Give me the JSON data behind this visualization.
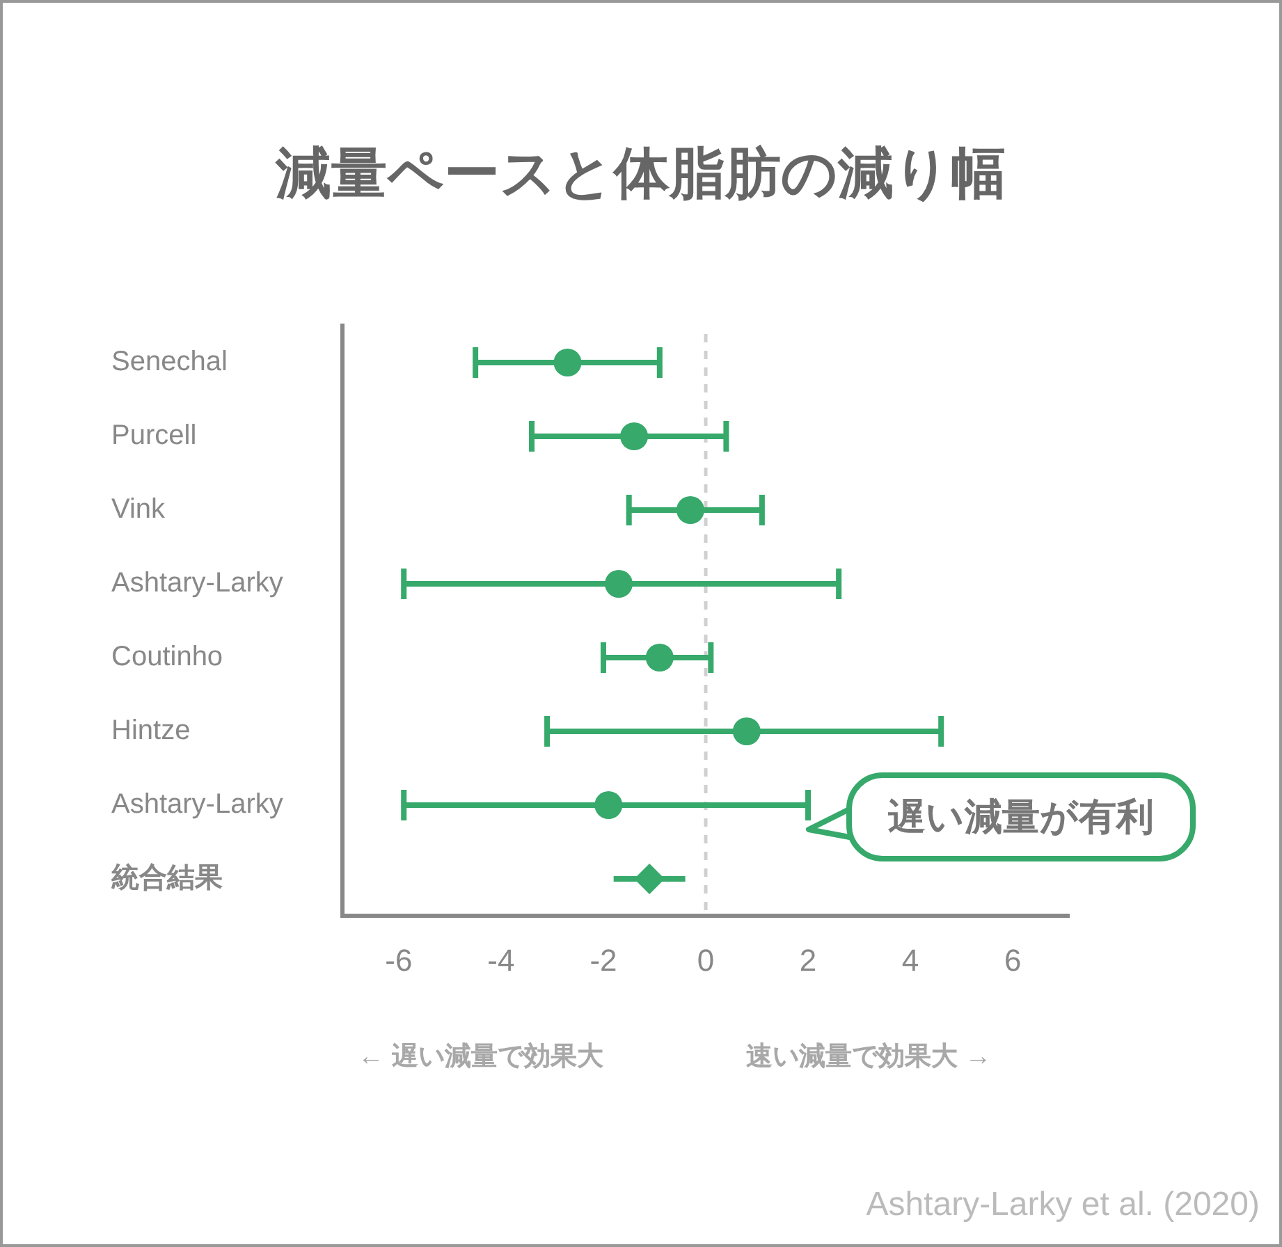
{
  "chart_data": {
    "type": "scatter",
    "title": "減量ペースと体脂肪の減り幅",
    "orientation": "horizontal",
    "categories": [
      "Senechal",
      "Purcell",
      "Vink",
      "Ashtary-Larky",
      "Coutinho",
      "Hintze",
      "Ashtary-Larky",
      "統合結果"
    ],
    "series": [
      {
        "color": "#36a96b",
        "marker": "circle",
        "values": [
          -2.7,
          -1.4,
          -0.3,
          -1.7,
          -0.9,
          0.8,
          -1.9,
          null
        ],
        "errors": [
          [
            -4.5,
            -0.9
          ],
          [
            -3.4,
            0.4
          ],
          [
            -1.5,
            1.1
          ],
          [
            -5.9,
            2.6
          ],
          [
            -2.0,
            0.1
          ],
          [
            -3.1,
            4.6
          ],
          [
            -5.9,
            2.0
          ],
          null
        ]
      },
      {
        "color": "#36a96b",
        "marker": "diamond",
        "values": [
          null,
          null,
          null,
          null,
          null,
          null,
          null,
          -1.1
        ],
        "errors": [
          null,
          null,
          null,
          null,
          null,
          null,
          null,
          [
            -1.8,
            -0.4
          ]
        ]
      }
    ],
    "xlim": [
      -7.1,
      7.1
    ],
    "xticks": [
      -6,
      -4,
      -2,
      0,
      2,
      4,
      6
    ],
    "ref_lines": [
      {
        "axis": "x",
        "value": 0,
        "color": "#d0d0d0",
        "line_style": "dashed"
      }
    ],
    "grid": false,
    "legend": false,
    "annotations": [
      "遅い減量が有利",
      "← 遅い減量で効果大",
      "速い減量で効果大 →",
      "Ashtary-Larky et al. (2020)"
    ]
  }
}
